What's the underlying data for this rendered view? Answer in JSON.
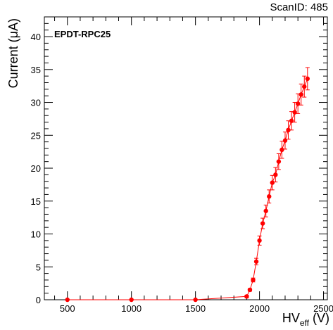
{
  "header": {
    "scan_id": "ScanID: 485"
  },
  "chart_data": {
    "type": "scatter",
    "legend_text": "EPDT-RPC25",
    "ylabel": "Current (μA)",
    "xlabel_main": "HV",
    "xlabel_sub": "eff",
    "xlabel_unit": " (V)",
    "xlim": [
      320,
      2530
    ],
    "ylim": [
      0,
      43
    ],
    "x_ticks": [
      500,
      1000,
      1500,
      2000,
      2500
    ],
    "y_ticks": [
      0,
      5,
      10,
      15,
      20,
      25,
      30,
      35,
      40
    ],
    "grid": false,
    "marker_color": "#ff0000",
    "line_color": "#ff0000",
    "series": [
      {
        "x": [
          500,
          1000,
          1500,
          1900,
          1925,
          1950,
          1975,
          2000,
          2025,
          2050,
          2075,
          2100,
          2125,
          2150,
          2175,
          2200,
          2225,
          2250,
          2275,
          2300,
          2325,
          2350,
          2375
        ],
        "y": [
          0,
          0,
          0,
          0.5,
          1.5,
          3.0,
          5.8,
          9.0,
          11.6,
          13.5,
          15.7,
          17.8,
          19.0,
          21.0,
          22.8,
          24.2,
          25.8,
          27.2,
          28.5,
          29.8,
          31.2,
          32.4,
          33.6
        ],
        "err": [
          0,
          0,
          0,
          0.2,
          0.2,
          0.3,
          0.5,
          0.7,
          0.8,
          0.9,
          1.0,
          1.1,
          1.1,
          1.2,
          1.3,
          1.3,
          1.4,
          1.4,
          1.5,
          1.5,
          1.6,
          1.6,
          1.7
        ]
      }
    ]
  }
}
